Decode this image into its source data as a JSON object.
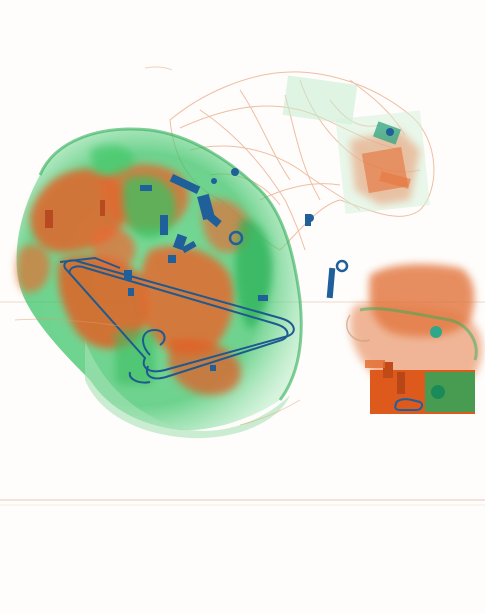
{
  "image": {
    "kind": "x-ray baggage scan",
    "background_color": "#fefdfb",
    "palette": {
      "organic": "#e0642a",
      "organic_light": "#f0a070",
      "mixed": "#3cc864",
      "mixed_light": "#b8ecc4",
      "metal": "#1f5f9a",
      "metal_dark": "#0c3a66"
    }
  }
}
